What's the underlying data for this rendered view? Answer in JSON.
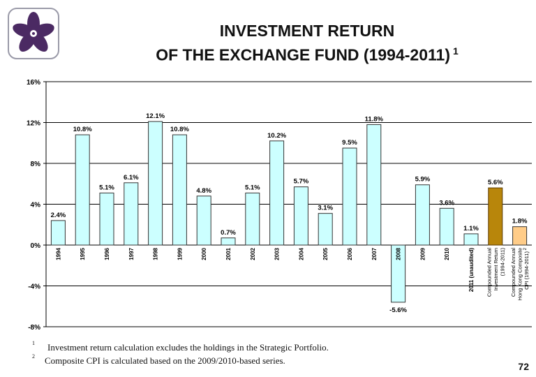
{
  "title": {
    "line1": "INVESTMENT RETURN",
    "line2": "OF THE EXCHANGE FUND (1994-2011)",
    "footnote_ref": "1"
  },
  "logo": {
    "icon": "bauhinia-flower-icon",
    "color": "#4b2a63"
  },
  "footnotes": [
    {
      "num": "1",
      "text": "Investment return calculation excludes the holdings in the Strategic Portfolio."
    },
    {
      "num": "2",
      "text": "Composite CPI is calculated based on the 2009/2010-based series."
    }
  ],
  "page_number": "72",
  "colors": {
    "bar_fill": "#ccffff",
    "compounded_return_fill": "#b8860b",
    "compounded_cpi_fill": "#ffcc88",
    "gridline": "#000000"
  },
  "chart_data": {
    "type": "bar",
    "title": "INVESTMENT RETURN OF THE EXCHANGE FUND (1994-2011)",
    "ylim": [
      -8,
      16
    ],
    "yticks": [
      16,
      12,
      8,
      4,
      0,
      -4,
      -8
    ],
    "ytick_labels": [
      "16%",
      "12%",
      "8%",
      "4%",
      "0%",
      "-4%",
      "-8%"
    ],
    "grid": true,
    "categories": [
      "1994",
      "1995",
      "1996",
      "1997",
      "1998",
      "1999",
      "2000",
      "2001",
      "2002",
      "2003",
      "2004",
      "2005",
      "2006",
      "2007",
      "2008",
      "2009",
      "2010",
      "2011 (unaudited)",
      "Compounded Annual Investment Return (1994-2011)",
      "Compounded Annual Hong Kong Composite CPI (1994-2011) 2"
    ],
    "values": [
      2.4,
      10.8,
      5.1,
      6.1,
      12.1,
      10.8,
      4.8,
      0.7,
      5.1,
      10.2,
      5.7,
      3.1,
      9.5,
      11.8,
      -5.6,
      5.9,
      3.6,
      1.1,
      5.6,
      1.8
    ],
    "data_labels": [
      "2.4%",
      "10.8%",
      "5.1%",
      "6.1%",
      "12.1%",
      "10.8%",
      "4.8%",
      "0.7%",
      "5.1%",
      "10.2%",
      "5.7%",
      "3.1%",
      "9.5%",
      "11.8%",
      "-5.6%",
      "5.9%",
      "3.6%",
      "1.1%",
      "5.6%",
      "1.8%"
    ]
  }
}
